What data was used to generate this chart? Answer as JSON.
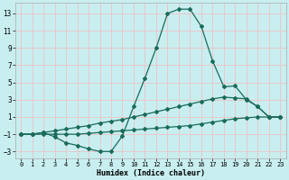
{
  "xlabel": "Humidex (Indice chaleur)",
  "xlim": [
    -0.5,
    23.5
  ],
  "ylim": [
    -3.8,
    14.2
  ],
  "yticks": [
    -3,
    -1,
    1,
    3,
    5,
    7,
    9,
    11,
    13
  ],
  "xticks": [
    0,
    1,
    2,
    3,
    4,
    5,
    6,
    7,
    8,
    9,
    10,
    11,
    12,
    13,
    14,
    15,
    16,
    17,
    18,
    19,
    20,
    21,
    22,
    23
  ],
  "bg_color": "#c8eef0",
  "grid_color": "#e8c8c8",
  "line_color": "#1a6b5a",
  "line1_x": [
    0,
    1,
    2,
    3,
    4,
    5,
    6,
    7,
    8,
    9,
    10,
    11,
    12,
    13,
    14,
    15,
    16,
    17,
    18,
    19,
    20,
    21,
    22,
    23
  ],
  "line1_y": [
    -1,
    -1,
    -0.8,
    -1.3,
    -2.0,
    -2.3,
    -2.7,
    -3.0,
    -3.0,
    -1.2,
    2.2,
    5.5,
    9.0,
    13.0,
    13.5,
    13.5,
    11.5,
    7.5,
    4.5,
    4.6,
    3.0,
    2.2,
    1.0,
    1.0
  ],
  "line2_x": [
    0,
    1,
    2,
    3,
    4,
    5,
    6,
    7,
    8,
    9,
    10,
    11,
    12,
    13,
    14,
    15,
    16,
    17,
    18,
    19,
    20,
    21,
    22,
    23
  ],
  "line2_y": [
    -1,
    -1,
    -0.8,
    -0.6,
    -0.4,
    -0.2,
    0.0,
    0.3,
    0.5,
    0.7,
    1.0,
    1.3,
    1.6,
    1.9,
    2.2,
    2.5,
    2.8,
    3.1,
    3.3,
    3.2,
    3.1,
    2.2,
    1.0,
    1.0
  ],
  "line3_x": [
    0,
    1,
    2,
    3,
    4,
    5,
    6,
    7,
    8,
    9,
    10,
    11,
    12,
    13,
    14,
    15,
    16,
    17,
    18,
    19,
    20,
    21,
    22,
    23
  ],
  "line3_y": [
    -1,
    -1,
    -1,
    -1,
    -1,
    -1,
    -0.9,
    -0.8,
    -0.7,
    -0.6,
    -0.5,
    -0.4,
    -0.3,
    -0.2,
    -0.1,
    0.0,
    0.2,
    0.4,
    0.6,
    0.8,
    0.9,
    1.0,
    1.0,
    1.0
  ]
}
